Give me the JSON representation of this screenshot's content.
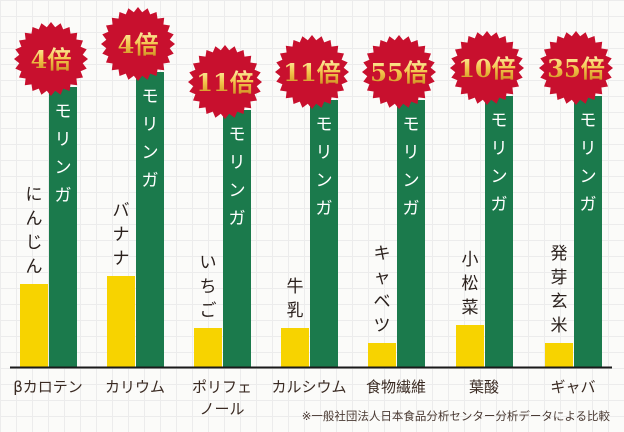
{
  "chart_data": {
    "type": "bar",
    "title": "",
    "xlabel": "",
    "ylabel": "",
    "ylim": [
      0,
      300
    ],
    "categories": [
      "βカロテン",
      "カリウム",
      "ポリフェノール",
      "カルシウム",
      "食物繊維",
      "葉酸",
      "ギャバ"
    ],
    "category_lines": [
      [
        "βカロテン"
      ],
      [
        "カリウム"
      ],
      [
        "ポリフェ",
        "ノール"
      ],
      [
        "カルシウム"
      ],
      [
        "食物繊維"
      ],
      [
        "葉酸"
      ],
      [
        "ギャバ"
      ]
    ],
    "series": [
      {
        "name": "comparison_food",
        "labels": [
          "にんじん",
          "バナナ",
          "いちご",
          "牛乳",
          "キャベツ",
          "小松菜",
          "発芽玄米"
        ],
        "values": [
          83,
          91,
          39,
          39,
          24,
          42,
          24
        ],
        "color": "#f7d300"
      },
      {
        "name": "モリンガ",
        "labels": [
          "モリンガ",
          "モリンガ",
          "モリンガ",
          "モリンガ",
          "モリンガ",
          "モリンガ",
          "モリンガ"
        ],
        "values": [
          280,
          295,
          257,
          267,
          267,
          271,
          271
        ],
        "color": "#1b7a4c"
      }
    ],
    "multipliers": [
      "4倍",
      "4倍",
      "11倍",
      "11倍",
      "55倍",
      "10倍",
      "35倍"
    ],
    "badge_color": "#c8102e",
    "grid": true,
    "legend": "none"
  },
  "footnote": "※一般社団法人日本食品分析センター分析データによる比較"
}
